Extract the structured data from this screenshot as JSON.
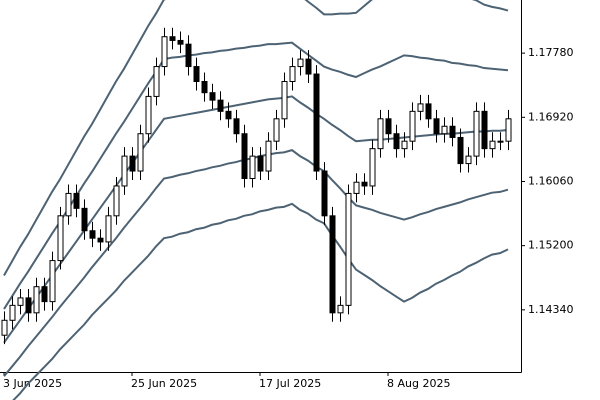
{
  "chart_data": {
    "type": "candlestick",
    "categories": [
      "3 Jun 2025",
      null,
      null,
      null,
      null,
      null,
      null,
      null,
      null,
      null,
      null,
      null,
      null,
      null,
      null,
      null,
      "25 Jun 2025",
      null,
      null,
      null,
      null,
      null,
      null,
      null,
      null,
      null,
      null,
      null,
      null,
      null,
      null,
      null,
      "17 Jul 2025",
      null,
      null,
      null,
      null,
      null,
      null,
      null,
      null,
      null,
      null,
      null,
      null,
      null,
      null,
      null,
      "8 Aug 2025",
      null,
      null,
      null,
      null,
      null,
      null,
      null,
      null,
      null,
      null,
      null,
      null,
      null,
      null,
      null
    ],
    "open": [
      1.14,
      1.142,
      1.144,
      1.145,
      1.143,
      1.1465,
      1.1445,
      1.15,
      1.156,
      1.159,
      1.157,
      1.154,
      1.153,
      1.1525,
      1.156,
      1.16,
      1.164,
      1.162,
      1.167,
      1.172,
      1.176,
      1.18,
      1.1795,
      1.179,
      1.176,
      1.174,
      1.1725,
      1.1715,
      1.17,
      1.169,
      1.167,
      1.161,
      1.164,
      1.162,
      1.166,
      1.169,
      1.174,
      1.176,
      1.177,
      1.175,
      1.162,
      1.156,
      1.143,
      1.144,
      1.159,
      1.1605,
      1.16,
      1.165,
      1.169,
      1.167,
      1.165,
      1.166,
      1.17,
      1.171,
      1.169,
      1.167,
      1.168,
      1.1665,
      1.163,
      1.164,
      1.17,
      1.165,
      1.166,
      1.166
    ],
    "high": [
      1.1432,
      1.1452,
      1.1462,
      1.1462,
      1.1477,
      1.1477,
      1.1512,
      1.1572,
      1.1602,
      1.1602,
      1.1582,
      1.1552,
      1.1542,
      1.1572,
      1.1612,
      1.1652,
      1.1652,
      1.1682,
      1.1732,
      1.1772,
      1.1812,
      1.1812,
      1.1807,
      1.1802,
      1.1772,
      1.1752,
      1.1737,
      1.1727,
      1.1712,
      1.1702,
      1.1682,
      1.1652,
      1.1652,
      1.1672,
      1.1702,
      1.1752,
      1.1772,
      1.1782,
      1.1782,
      1.1762,
      1.1632,
      1.1572,
      1.1452,
      1.1602,
      1.1617,
      1.1617,
      1.1662,
      1.1702,
      1.1702,
      1.1682,
      1.1672,
      1.1712,
      1.1722,
      1.1722,
      1.1702,
      1.1692,
      1.1692,
      1.1677,
      1.1652,
      1.1712,
      1.1712,
      1.1672,
      1.1672,
      1.1702
    ],
    "low": [
      1.1388,
      1.1408,
      1.1428,
      1.1418,
      1.1418,
      1.1433,
      1.1433,
      1.1488,
      1.1548,
      1.1558,
      1.1528,
      1.1518,
      1.1513,
      1.1513,
      1.1548,
      1.1588,
      1.1608,
      1.1608,
      1.1658,
      1.1708,
      1.1748,
      1.1783,
      1.1778,
      1.1748,
      1.1728,
      1.1713,
      1.1703,
      1.1688,
      1.1678,
      1.1658,
      1.1598,
      1.1598,
      1.1608,
      1.1608,
      1.1648,
      1.1678,
      1.1728,
      1.1748,
      1.1738,
      1.1608,
      1.1548,
      1.1418,
      1.1418,
      1.1428,
      1.1578,
      1.1588,
      1.1588,
      1.1638,
      1.1658,
      1.1638,
      1.1638,
      1.1648,
      1.1688,
      1.1678,
      1.1658,
      1.1658,
      1.1653,
      1.1618,
      1.1618,
      1.1628,
      1.1638,
      1.1638,
      1.1648,
      1.1648
    ],
    "close": [
      1.142,
      1.144,
      1.145,
      1.143,
      1.1465,
      1.1445,
      1.15,
      1.156,
      1.159,
      1.157,
      1.154,
      1.153,
      1.1525,
      1.156,
      1.16,
      1.164,
      1.162,
      1.167,
      1.172,
      1.176,
      1.18,
      1.1795,
      1.179,
      1.176,
      1.174,
      1.1725,
      1.1715,
      1.17,
      1.169,
      1.167,
      1.161,
      1.164,
      1.162,
      1.166,
      1.169,
      1.174,
      1.176,
      1.177,
      1.175,
      1.162,
      1.156,
      1.143,
      1.144,
      1.159,
      1.1605,
      1.16,
      1.165,
      1.169,
      1.167,
      1.165,
      1.166,
      1.17,
      1.171,
      1.169,
      1.167,
      1.168,
      1.1665,
      1.163,
      1.164,
      1.17,
      1.165,
      1.166,
      1.166,
      1.169
    ],
    "up_color": "#ffffff",
    "down_color": "#000000",
    "edge_color": "#000000",
    "overlays": [
      {
        "color": "#4d6374",
        "values": [
          1.148,
          1.1499,
          1.1518,
          1.1535,
          1.1554,
          1.1573,
          1.1592,
          1.1609,
          1.1628,
          1.1647,
          1.1666,
          1.1683,
          1.1702,
          1.1721,
          1.174,
          1.1757,
          1.1776,
          1.1795,
          1.1814,
          1.1831,
          1.185,
          1.1852,
          1.1852,
          1.1854,
          1.1854,
          1.1856,
          1.1856,
          1.1858,
          1.1858,
          1.186,
          1.186,
          1.1862,
          1.1862,
          1.1864,
          1.1863,
          1.1864,
          1.1864,
          1.1856,
          1.1847,
          1.1839,
          1.183,
          1.183,
          1.1831,
          1.1831,
          1.1832,
          1.1841,
          1.185,
          1.1858,
          1.1867,
          1.1876,
          1.1885,
          1.1882,
          1.1877,
          1.1874,
          1.1869,
          1.1866,
          1.186,
          1.1857,
          1.1852,
          1.1849,
          1.1843,
          1.184,
          1.1838,
          1.1835
        ]
      },
      {
        "color": "#4d6374",
        "values": [
          1.1435,
          1.1452,
          1.1469,
          1.1485,
          1.1502,
          1.1519,
          1.1536,
          1.1552,
          1.1569,
          1.1586,
          1.1603,
          1.1619,
          1.1636,
          1.1653,
          1.167,
          1.1686,
          1.1703,
          1.172,
          1.1737,
          1.1753,
          1.177,
          1.1772,
          1.1773,
          1.1775,
          1.1776,
          1.1778,
          1.1779,
          1.1781,
          1.1782,
          1.1784,
          1.1785,
          1.1787,
          1.1788,
          1.179,
          1.179,
          1.1791,
          1.1792,
          1.1784,
          1.1776,
          1.1768,
          1.176,
          1.1756,
          1.1753,
          1.1749,
          1.1746,
          1.1751,
          1.1756,
          1.176,
          1.1765,
          1.177,
          1.1775,
          1.1774,
          1.1772,
          1.1771,
          1.1769,
          1.1768,
          1.1765,
          1.1764,
          1.1762,
          1.1761,
          1.1758,
          1.1757,
          1.1756,
          1.1755
        ]
      },
      {
        "color": "#4d6374",
        "values": [
          1.139,
          1.1405,
          1.142,
          1.1435,
          1.145,
          1.1465,
          1.148,
          1.1495,
          1.151,
          1.1525,
          1.154,
          1.1555,
          1.157,
          1.1585,
          1.16,
          1.1615,
          1.163,
          1.1645,
          1.166,
          1.1675,
          1.169,
          1.1692,
          1.1694,
          1.1696,
          1.1698,
          1.17,
          1.1702,
          1.1704,
          1.1706,
          1.1708,
          1.171,
          1.1712,
          1.1714,
          1.1716,
          1.1717,
          1.1718,
          1.172,
          1.1712,
          1.1705,
          1.1697,
          1.169,
          1.1682,
          1.1675,
          1.1667,
          1.166,
          1.1661,
          1.1662,
          1.1662,
          1.1663,
          1.1664,
          1.1665,
          1.1666,
          1.1667,
          1.1668,
          1.1669,
          1.167,
          1.167,
          1.1671,
          1.1672,
          1.1673,
          1.1673,
          1.1674,
          1.1674,
          1.1675
        ]
      },
      {
        "color": "#4d6374",
        "values": [
          1.1345,
          1.1358,
          1.1371,
          1.1385,
          1.1398,
          1.1411,
          1.1424,
          1.1438,
          1.1451,
          1.1464,
          1.1477,
          1.1491,
          1.1504,
          1.1517,
          1.153,
          1.1544,
          1.1557,
          1.157,
          1.1583,
          1.1597,
          1.161,
          1.1612,
          1.1615,
          1.1617,
          1.162,
          1.1622,
          1.1625,
          1.1627,
          1.163,
          1.1632,
          1.1635,
          1.1637,
          1.164,
          1.1642,
          1.1644,
          1.1645,
          1.1648,
          1.164,
          1.1634,
          1.1626,
          1.162,
          1.1608,
          1.1597,
          1.1585,
          1.1574,
          1.1571,
          1.1568,
          1.1564,
          1.1561,
          1.1558,
          1.1555,
          1.1558,
          1.1562,
          1.1565,
          1.1569,
          1.1572,
          1.1575,
          1.1578,
          1.1582,
          1.1585,
          1.1588,
          1.1591,
          1.1592,
          1.1595
        ]
      },
      {
        "color": "#4d6374",
        "values": [
          1.13,
          1.1311,
          1.1322,
          1.1335,
          1.1346,
          1.1357,
          1.1368,
          1.1381,
          1.1392,
          1.1403,
          1.1414,
          1.1427,
          1.1438,
          1.1449,
          1.146,
          1.1473,
          1.1484,
          1.1495,
          1.1506,
          1.1519,
          1.153,
          1.1532,
          1.1536,
          1.1538,
          1.1542,
          1.1544,
          1.1548,
          1.155,
          1.1554,
          1.1556,
          1.156,
          1.1562,
          1.1566,
          1.1568,
          1.1571,
          1.1572,
          1.1576,
          1.1568,
          1.1563,
          1.1555,
          1.155,
          1.1534,
          1.1519,
          1.1503,
          1.1488,
          1.1481,
          1.1474,
          1.1466,
          1.1459,
          1.1452,
          1.1445,
          1.145,
          1.1457,
          1.1462,
          1.1469,
          1.1474,
          1.148,
          1.1485,
          1.1492,
          1.1497,
          1.1503,
          1.1508,
          1.151,
          1.1515
        ]
      }
    ],
    "ylim": [
      1.13507,
      1.18492
    ],
    "yticks": [
      {
        "value": 1.1434,
        "label": "1.14340"
      },
      {
        "value": 1.152,
        "label": "1.15200"
      },
      {
        "value": 1.1606,
        "label": "1.16060"
      },
      {
        "value": 1.1692,
        "label": "1.16920"
      },
      {
        "value": 1.1778,
        "label": "1.17780"
      }
    ],
    "y_axis_side": "right",
    "grid": false
  }
}
